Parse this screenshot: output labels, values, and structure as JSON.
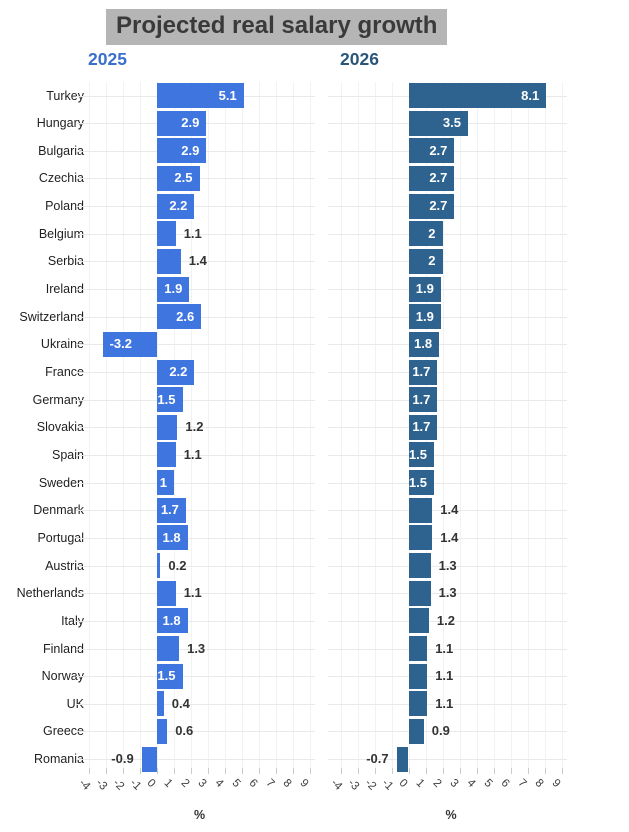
{
  "chart_data": {
    "type": "bar",
    "orientation": "horizontal",
    "title": "Projected real salary growth",
    "categories": [
      "Turkey",
      "Hungary",
      "Bulgaria",
      "Czechia",
      "Poland",
      "Belgium",
      "Serbia",
      "Ireland",
      "Switzerland",
      "Ukraine",
      "France",
      "Germany",
      "Slovakia",
      "Spain",
      "Sweden",
      "Denmark",
      "Portugal",
      "Austria",
      "Netherlands",
      "Italy",
      "Finland",
      "Norway",
      "UK",
      "Greece",
      "Romania"
    ],
    "series": [
      {
        "name": "2025",
        "bar_color": "#3f75df",
        "header_color": "#3a70cc",
        "values": [
          5.1,
          2.9,
          2.9,
          2.5,
          2.2,
          1.1,
          1.4,
          1.9,
          2.6,
          -3.2,
          2.2,
          1.5,
          1.2,
          1.1,
          1,
          1.7,
          1.8,
          0.2,
          1.1,
          1.8,
          1.3,
          1.5,
          0.4,
          0.6,
          -0.9
        ]
      },
      {
        "name": "2026",
        "bar_color": "#2f638f",
        "header_color": "#2b567a",
        "values": [
          8.1,
          3.5,
          2.7,
          2.7,
          2.7,
          2,
          2,
          1.9,
          1.9,
          1.8,
          1.7,
          1.7,
          1.7,
          1.5,
          1.5,
          1.4,
          1.4,
          1.3,
          1.3,
          1.2,
          1.1,
          1.1,
          1.1,
          0.9,
          -0.7
        ]
      }
    ],
    "xlabel": "%",
    "xlim": [
      -4,
      9
    ],
    "xticks": [
      -4,
      -3,
      -2,
      -1,
      0,
      1,
      2,
      3,
      4,
      5,
      6,
      7,
      8,
      9
    ],
    "grid": true,
    "legend_position": "none",
    "colors": {
      "title_text": "#3a3a3a",
      "title_bg": "#b5b5b5",
      "value_label_inside": "#ffffff",
      "value_label_outside": "#333333",
      "category_label": "#1f1f1f",
      "tick_label": "#3d3d3d",
      "hgrid": "#e9e9e9",
      "vgrid": "#f2f2f2",
      "tick_mark": "#cccccc"
    }
  }
}
